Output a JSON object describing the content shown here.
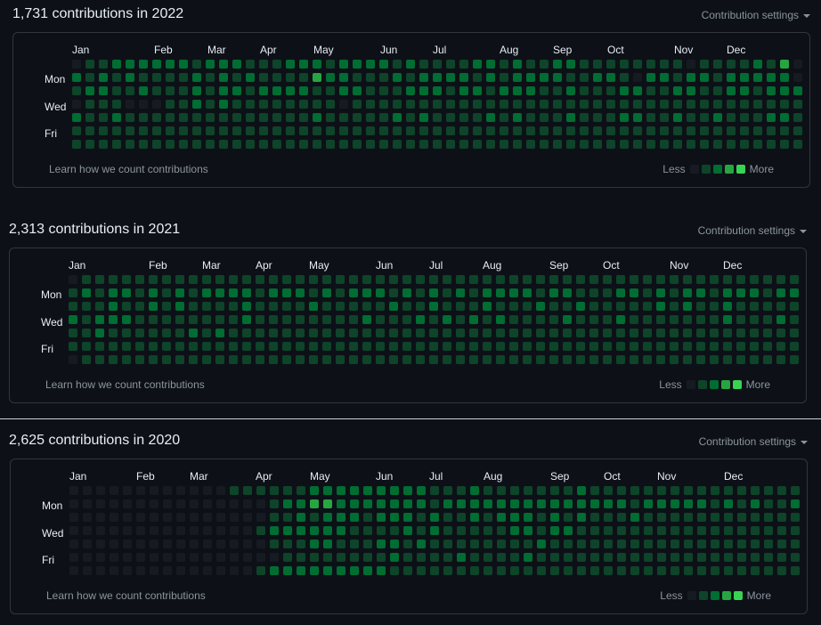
{
  "colors": {
    "background": "#0d1117",
    "levels": [
      "#161b22",
      "#0e4429",
      "#006d32",
      "#26a641",
      "#39d353"
    ]
  },
  "sections": [
    {
      "id": "2022",
      "title": "1,731 contributions in 2022",
      "settings_label": "Contribution settings",
      "months": [
        "Jan",
        "Feb",
        "Mar",
        "Apr",
        "May",
        "Jun",
        "Jul",
        "Aug",
        "Sep",
        "Oct",
        "Nov",
        "Dec"
      ],
      "days": [
        "Mon",
        "Wed",
        "Fri"
      ],
      "learn_label": "Learn how we count contributions",
      "legend_less": "Less",
      "legend_more": "More",
      "grid": [
        "0112222221222111222122221211112212112211111111011112130",
        "2121211112121211113221112122221212222112210221221222220",
        "1221121112122122221122111222122122211211122112211221222",
        "0111000112121111111101111111111111111111111111111111111",
        "2112111111111111112111112121111212111211122112112111221",
        "1111111111111111111111111111111111111111111111111111111",
        "1111111111111111111111111111111111111111111111111111111"
      ]
    },
    {
      "id": "2021",
      "title": "2,313 contributions in 2021",
      "settings_label": "Contribution settings",
      "months": [
        "Jan",
        "Feb",
        "Mar",
        "Apr",
        "May",
        "Jun",
        "Jul",
        "Aug",
        "Sep",
        "Oct",
        "Nov",
        "Dec"
      ],
      "days": [
        "Mon",
        "Wed",
        "Fri"
      ],
      "learn_label": "Learn how we count contributions",
      "legend_less": "Less",
      "legend_more": "More",
      "grid": [
        "0111111111111111111111111111111111111111111111111111111",
        "1212212121222212221212221212121222212211122121221222122",
        "1112112121111211112111112112111211121121111121211211111",
        "2122211111111211111111211121212121111211121111111211121",
        "1121111112121111111111111111111111111111111111111111111",
        "1111111111111111111111111111111111111111111111111111111",
        "0111111111111111111111111111111111111111111111111111111"
      ]
    },
    {
      "id": "2020",
      "title": "2,625 contributions in 2020",
      "settings_label": "Contribution settings",
      "months": [
        "Jan",
        "Feb",
        "Mar",
        "Apr",
        "May",
        "Jun",
        "Jul",
        "Aug",
        "Sep",
        "Oct",
        "Nov",
        "Dec"
      ],
      "days": [
        "Mon",
        "Wed",
        "Fri"
      ],
      "learn_label": "Learn how we count contributions",
      "legend_less": "Less",
      "legend_more": "More",
      "grid": [
        "0000000000001111112222222221112111111121111111111111111",
        "0000000000000001223322222221222222222222221222221212112",
        "0000000000000001121222122212112122212121112111111111111",
        "0000000000000012222221111212111112212211111111111111111",
        "0000000000000001112211122121111111121111111111111111111",
        "0000000000000000111111112111121111211111111111111111111",
        "0000000000000012222222221111111111111111111111111111111"
      ]
    }
  ]
}
